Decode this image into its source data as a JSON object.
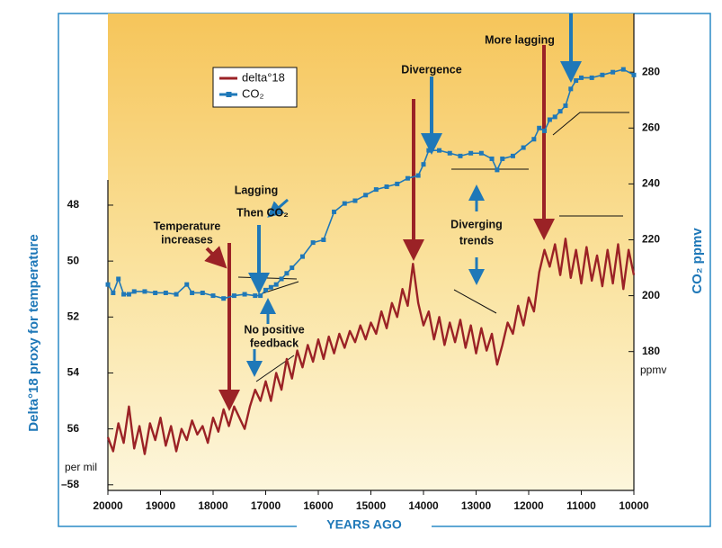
{
  "chart_data": {
    "type": "line",
    "x_label": "YEARS AGO",
    "y_label": "Delta°18 proxy for temperature",
    "y_unit": "per mil",
    "y2_label": "CO₂ ppmv",
    "y2_unit": "ppmv",
    "xlim": [
      20000,
      10000
    ],
    "xticks": [
      20000,
      19000,
      18000,
      17000,
      16000,
      15000,
      14000,
      13000,
      12000,
      11000,
      10000
    ],
    "ylim": [
      47.1,
      58.2
    ],
    "y_inverted": true,
    "yticks": [
      48,
      50,
      52,
      54,
      56,
      {
        "value": 58,
        "label": "–58"
      }
    ],
    "y2lim": [
      130.3,
      301
    ],
    "y2ticks": [
      180,
      200,
      220,
      240,
      260,
      280
    ],
    "legend": "upper left",
    "series": [
      {
        "name": "delta°18",
        "color": "#9b2226",
        "axis": "y",
        "x": [
          20000,
          19900,
          19800,
          19700,
          19600,
          19500,
          19400,
          19300,
          19200,
          19100,
          19000,
          18900,
          18800,
          18700,
          18600,
          18500,
          18400,
          18300,
          18200,
          18100,
          18000,
          17900,
          17800,
          17700,
          17600,
          17500,
          17400,
          17300,
          17200,
          17100,
          17000,
          16900,
          16800,
          16700,
          16600,
          16500,
          16400,
          16300,
          16200,
          16100,
          16000,
          15900,
          15800,
          15700,
          15600,
          15500,
          15400,
          15300,
          15200,
          15100,
          15000,
          14900,
          14800,
          14700,
          14600,
          14500,
          14400,
          14300,
          14200,
          14100,
          14000,
          13900,
          13800,
          13700,
          13600,
          13500,
          13400,
          13300,
          13200,
          13100,
          13000,
          12900,
          12800,
          12700,
          12600,
          12500,
          12400,
          12300,
          12200,
          12100,
          12000,
          11900,
          11800,
          11700,
          11600,
          11500,
          11400,
          11300,
          11200,
          11100,
          11000,
          10900,
          10800,
          10700,
          10600,
          10500,
          10400,
          10300,
          10200,
          10100,
          10000
        ],
        "values": [
          56.3,
          56.8,
          55.8,
          56.5,
          55.2,
          56.7,
          55.9,
          56.9,
          55.8,
          56.4,
          55.6,
          56.6,
          55.9,
          56.8,
          56.0,
          56.4,
          55.7,
          56.2,
          55.9,
          56.5,
          55.6,
          56.1,
          55.3,
          55.9,
          55.2,
          55.6,
          56.0,
          55.2,
          54.6,
          55.0,
          54.3,
          55.0,
          54.0,
          54.6,
          53.5,
          54.2,
          53.2,
          53.8,
          53.0,
          53.6,
          52.8,
          53.5,
          52.7,
          53.3,
          52.6,
          53.1,
          52.5,
          52.9,
          52.3,
          52.8,
          52.2,
          52.6,
          51.8,
          52.4,
          51.5,
          52.0,
          51.0,
          51.6,
          50.1,
          51.5,
          52.3,
          51.8,
          52.8,
          52.0,
          53.0,
          52.2,
          52.9,
          52.1,
          53.1,
          52.3,
          53.3,
          52.4,
          53.2,
          52.6,
          53.7,
          53.0,
          52.2,
          52.6,
          51.6,
          52.3,
          51.3,
          51.8,
          50.4,
          49.6,
          50.2,
          49.4,
          50.5,
          49.2,
          50.6,
          49.6,
          50.8,
          49.5,
          50.7,
          49.8,
          50.9,
          49.6,
          50.8,
          49.4,
          51.0,
          49.6,
          50.5
        ]
      },
      {
        "name": "CO₂",
        "color": "#1f78b8",
        "axis": "y2",
        "marker": "square",
        "x": [
          20000,
          19900,
          19800,
          19700,
          19600,
          19500,
          19300,
          19100,
          18900,
          18700,
          18500,
          18400,
          18200,
          18000,
          17800,
          17600,
          17400,
          17200,
          17100,
          17000,
          16900,
          16800,
          16700,
          16600,
          16500,
          16300,
          16100,
          15900,
          15700,
          15500,
          15300,
          15100,
          14900,
          14700,
          14500,
          14300,
          14100,
          14000,
          13900,
          13700,
          13500,
          13300,
          13100,
          12900,
          12700,
          12600,
          12500,
          12300,
          12100,
          11900,
          11800,
          11700,
          11600,
          11500,
          11400,
          11300,
          11200,
          11100,
          11000,
          10800,
          10600,
          10400,
          10200,
          10000
        ],
        "values": [
          204,
          201,
          206,
          200.5,
          200.5,
          201.5,
          201.5,
          201,
          201,
          200.5,
          204,
          201,
          201,
          200,
          199,
          200,
          200.5,
          200,
          200,
          202,
          203,
          204,
          206,
          208,
          210,
          214,
          219,
          220,
          230,
          233,
          234,
          236,
          238,
          239,
          240,
          242,
          243,
          247,
          252,
          252,
          251,
          250,
          251,
          251,
          249,
          245,
          249,
          250,
          253,
          256,
          260,
          259,
          263,
          264,
          266,
          268,
          274,
          277,
          278,
          278,
          279,
          280,
          281,
          279
        ]
      }
    ],
    "annotations": [
      "Lagging",
      "Then CO₂",
      "Temperature",
      "increases",
      "No positive",
      "feedback",
      "Divergence",
      "Diverging",
      "trends",
      "More lagging"
    ]
  }
}
